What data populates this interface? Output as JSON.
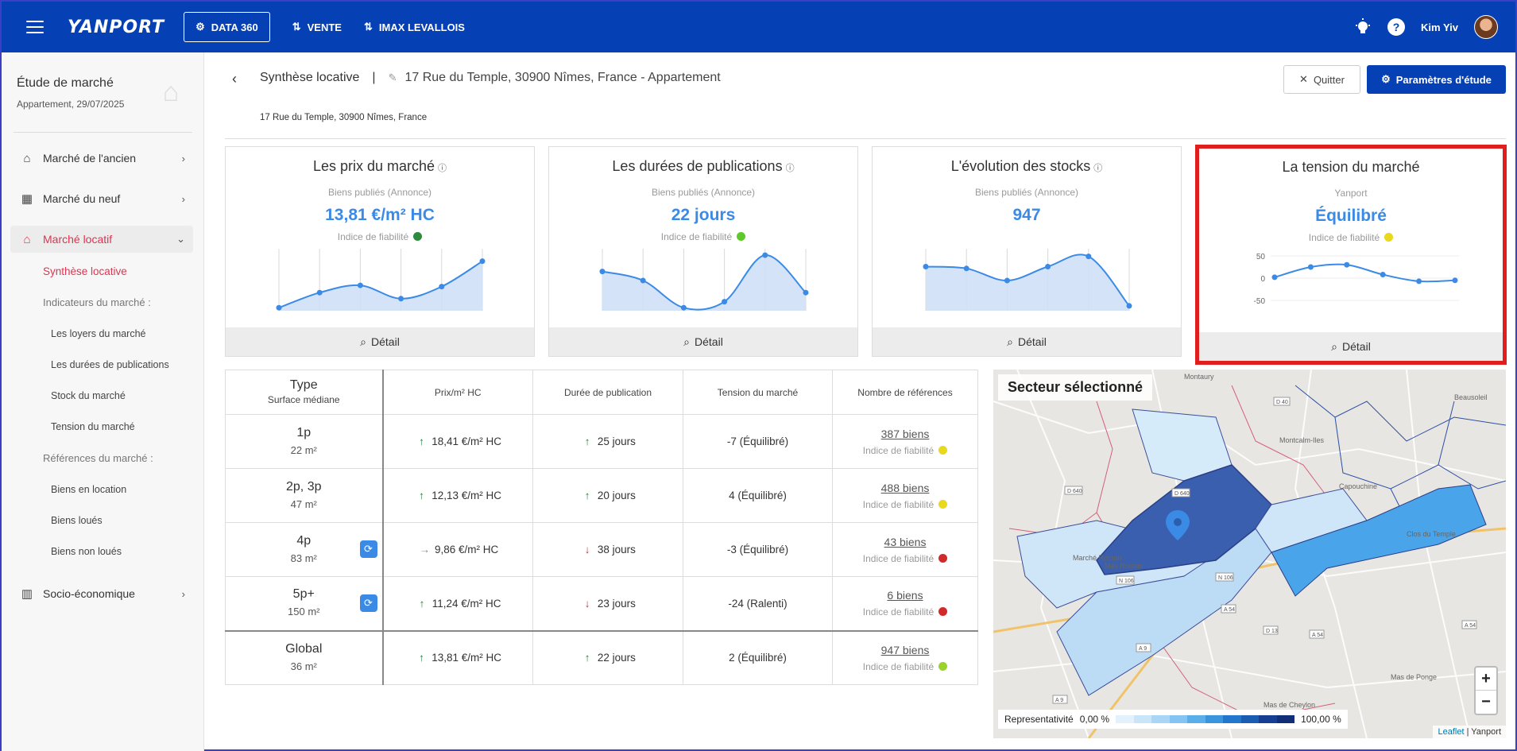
{
  "topbar": {
    "logo": "YANPORT",
    "nav": [
      {
        "label": "DATA 360",
        "icon": "data-360-icon"
      },
      {
        "label": "VENTE",
        "icon": "swap-vertical-icon"
      },
      {
        "label": "IMAX LEVALLOIS",
        "icon": "swap-vertical-icon"
      }
    ],
    "help_label": "?",
    "user_name": "Kim Yiv"
  },
  "sidebar": {
    "study_title": "Étude de marché",
    "study_subtitle": "Appartement, 29/07/2025",
    "menu": [
      {
        "label": "Marché de l'ancien",
        "icon": "house-hand-icon"
      },
      {
        "label": "Marché du neuf",
        "icon": "building-icon"
      },
      {
        "label": "Marché locatif",
        "icon": "house-key-icon"
      },
      {
        "label": "Socio-économique",
        "icon": "bar-chart-icon"
      }
    ],
    "current_sub": "Synthèse locative",
    "group_indicators": "Indicateurs du marché :",
    "indicators": [
      "Les loyers du marché",
      "Les durées de publications",
      "Stock du marché",
      "Tension du marché"
    ],
    "group_references": "Références du marché :",
    "references": [
      "Biens en location",
      "Biens loués",
      "Biens non loués"
    ]
  },
  "header": {
    "section": "Synthèse locative",
    "separator": "|",
    "address_title": "17 Rue du Temple, 30900 Nîmes, France - Appartement",
    "address_small": "17 Rue du Temple, 30900 Nîmes, France",
    "quit_label": "Quitter",
    "params_label": "Paramètres d'étude"
  },
  "cards": [
    {
      "title": "Les prix du marché",
      "source": "Biens publiés (Annonce)",
      "value": "13,81 €/m² HC",
      "reliability_label": "Indice de fiabilité",
      "reliability_color": "#2e8b3e",
      "detail": "Détail"
    },
    {
      "title": "Les durées de publications",
      "source": "Biens publiés (Annonce)",
      "value": "22 jours",
      "reliability_label": "Indice de fiabilité",
      "reliability_color": "#5fc82a",
      "detail": "Détail"
    },
    {
      "title": "L'évolution des stocks",
      "source": "Biens publiés (Annonce)",
      "value": "947",
      "reliability_label": "",
      "reliability_color": "",
      "detail": "Détail"
    },
    {
      "title": "La tension du marché",
      "source": "Yanport",
      "value": "Équilibré",
      "reliability_label": "Indice de fiabilité",
      "reliability_color": "#e8d81e",
      "detail": "Détail",
      "y_ticks": [
        "50",
        "0",
        "-50"
      ]
    }
  ],
  "chart_data": [
    {
      "type": "area",
      "title": "Les prix du marché",
      "y": [
        0.05,
        0.3,
        0.42,
        0.2,
        0.4,
        0.82
      ]
    },
    {
      "type": "area",
      "title": "Les durées de publications",
      "y": [
        0.65,
        0.5,
        0.05,
        0.15,
        0.92,
        0.3
      ]
    },
    {
      "type": "area",
      "title": "L'évolution des stocks",
      "y": [
        0.73,
        0.7,
        0.5,
        0.73,
        0.9,
        0.08
      ]
    },
    {
      "type": "line",
      "title": "La tension du marché",
      "y": [
        2,
        25,
        30,
        8,
        -7,
        -5
      ],
      "ylim": [
        -50,
        50
      ],
      "yticks": [
        50,
        0,
        -50
      ]
    }
  ],
  "table": {
    "headers": {
      "type": "Type",
      "type_sub": "Surface médiane",
      "price": "Prix/m² HC",
      "duration": "Durée de publication",
      "tension": "Tension du marché",
      "refs": "Nombre de références"
    },
    "rows": [
      {
        "type": "1p",
        "surface": "22 m²",
        "price": "18,41 €/m² HC",
        "price_trend": "up",
        "duration": "25 jours",
        "duration_trend": "up",
        "tension": "-7 (Équilibré)",
        "refs": "387 biens",
        "reliability": "Indice de fiabilité",
        "rel_color": "#e8d81e",
        "refresh": false
      },
      {
        "type": "2p, 3p",
        "surface": "47 m²",
        "price": "12,13 €/m² HC",
        "price_trend": "up",
        "duration": "20 jours",
        "duration_trend": "up",
        "tension": "4 (Équilibré)",
        "refs": "488 biens",
        "reliability": "Indice de fiabilité",
        "rel_color": "#e8d81e",
        "refresh": false
      },
      {
        "type": "4p",
        "surface": "83 m²",
        "price": "9,86 €/m² HC",
        "price_trend": "flat",
        "duration": "38 jours",
        "duration_trend": "down",
        "tension": "-3 (Équilibré)",
        "refs": "43 biens",
        "reliability": "Indice de fiabilité",
        "rel_color": "#d12a2a",
        "refresh": true
      },
      {
        "type": "5p+",
        "surface": "150 m²",
        "price": "11,24 €/m² HC",
        "price_trend": "up",
        "duration": "23 jours",
        "duration_trend": "down",
        "tension": "-24 (Ralenti)",
        "refs": "6 biens",
        "reliability": "Indice de fiabilité",
        "rel_color": "#d12a2a",
        "refresh": true
      },
      {
        "type": "Global",
        "surface": "36 m²",
        "price": "13,81 €/m² HC",
        "price_trend": "up",
        "duration": "22 jours",
        "duration_trend": "up",
        "tension": "2 (Équilibré)",
        "refs": "947 biens",
        "reliability": "Indice de fiabilité",
        "rel_color": "#9bd32a",
        "refresh": false,
        "global": true
      }
    ]
  },
  "map": {
    "title": "Secteur sélectionné",
    "zoom_in": "+",
    "zoom_out": "−",
    "legend_label": "Representativité",
    "legend_min": "0,00 %",
    "legend_max": "100,00 %",
    "legend_colors": [
      "#e3f1fc",
      "#c9e5fa",
      "#a9d6f7",
      "#85c3f2",
      "#5aaeea",
      "#3a95df",
      "#2277cc",
      "#1a5cb2",
      "#163f93",
      "#122e76"
    ],
    "attribution_link": "Leaflet",
    "attribution_text": " | Yanport",
    "street_labels": [
      "Montaury",
      "Marché Roman",
      "Capouchine",
      "Montcalm-Iles",
      "Mas de Cheylon",
      "Mas de Ponge",
      "Beausoleil",
      "Clos du Temple",
      "Mas Roman"
    ]
  },
  "colors": {
    "brand": "#0640b5",
    "accent": "#e0334f",
    "value": "#3a8ae6"
  }
}
